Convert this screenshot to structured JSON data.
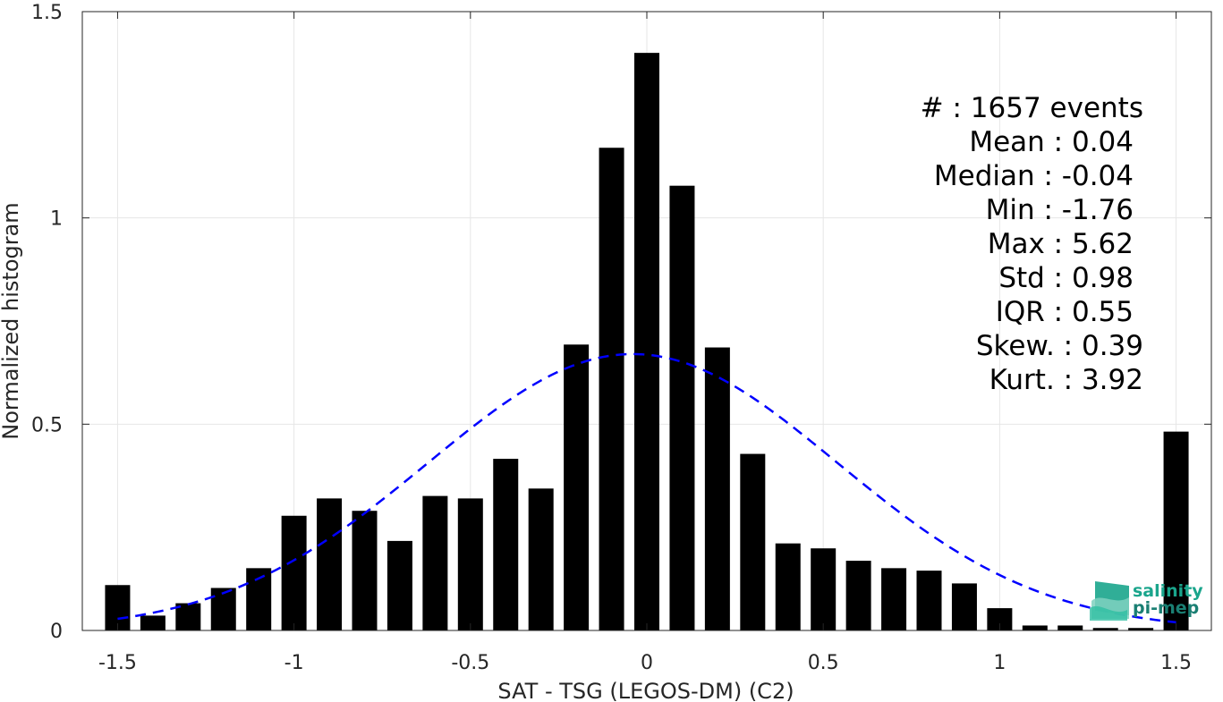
{
  "chart_data": {
    "type": "bar",
    "xlabel": "SAT - TSG (LEGOS-DM) (C2)",
    "ylabel": "Normalized histogram",
    "xlim": [
      -1.6,
      1.6
    ],
    "ylim": [
      0,
      1.5
    ],
    "x_ticks": [
      -1.5,
      -1,
      -0.5,
      0,
      0.5,
      1,
      1.5
    ],
    "x_tick_labels": [
      "-1.5",
      "-1",
      "-0.5",
      "0",
      "0.5",
      "1",
      "1.5"
    ],
    "y_ticks": [
      0,
      0.5,
      1,
      1.5
    ],
    "y_tick_labels": [
      "0",
      "0.5",
      "1",
      "1.5"
    ],
    "grid": true,
    "bar_color": "#000000",
    "bins": [
      -1.5,
      -1.4,
      -1.3,
      -1.2,
      -1.1,
      -1.0,
      -0.9,
      -0.8,
      -0.7,
      -0.6,
      -0.5,
      -0.4,
      -0.3,
      -0.2,
      -0.1,
      0.0,
      0.1,
      0.2,
      0.3,
      0.4,
      0.5,
      0.6,
      0.7,
      0.8,
      0.9,
      1.0,
      1.1,
      1.2,
      1.3,
      1.4,
      1.5
    ],
    "values": [
      0.11,
      0.036,
      0.066,
      0.103,
      0.151,
      0.278,
      0.32,
      0.29,
      0.217,
      0.326,
      0.32,
      0.416,
      0.344,
      0.693,
      1.17,
      1.4,
      1.078,
      0.686,
      0.428,
      0.211,
      0.199,
      0.169,
      0.151,
      0.145,
      0.114,
      0.054,
      0.012,
      0.012,
      0.006,
      0.006,
      0.482
    ],
    "fit": {
      "type": "gaussian",
      "color": "#0000ff",
      "style": "dashed",
      "mean": -0.04,
      "std": 0.58,
      "peak": 0.67,
      "x_range": [
        -1.5,
        1.5
      ]
    },
    "stats": [
      "#  : 1657 events",
      "Mean : 0.04",
      "Median : -0.04",
      "Min : -1.76",
      "Max : 5.62",
      "Std : 0.98",
      "IQR : 0.55",
      "Skew. : 0.39",
      "Kurt. : 3.92"
    ]
  },
  "logo": {
    "line1": "salinity",
    "line2": "pi-mep",
    "color": "#1aa58c"
  }
}
